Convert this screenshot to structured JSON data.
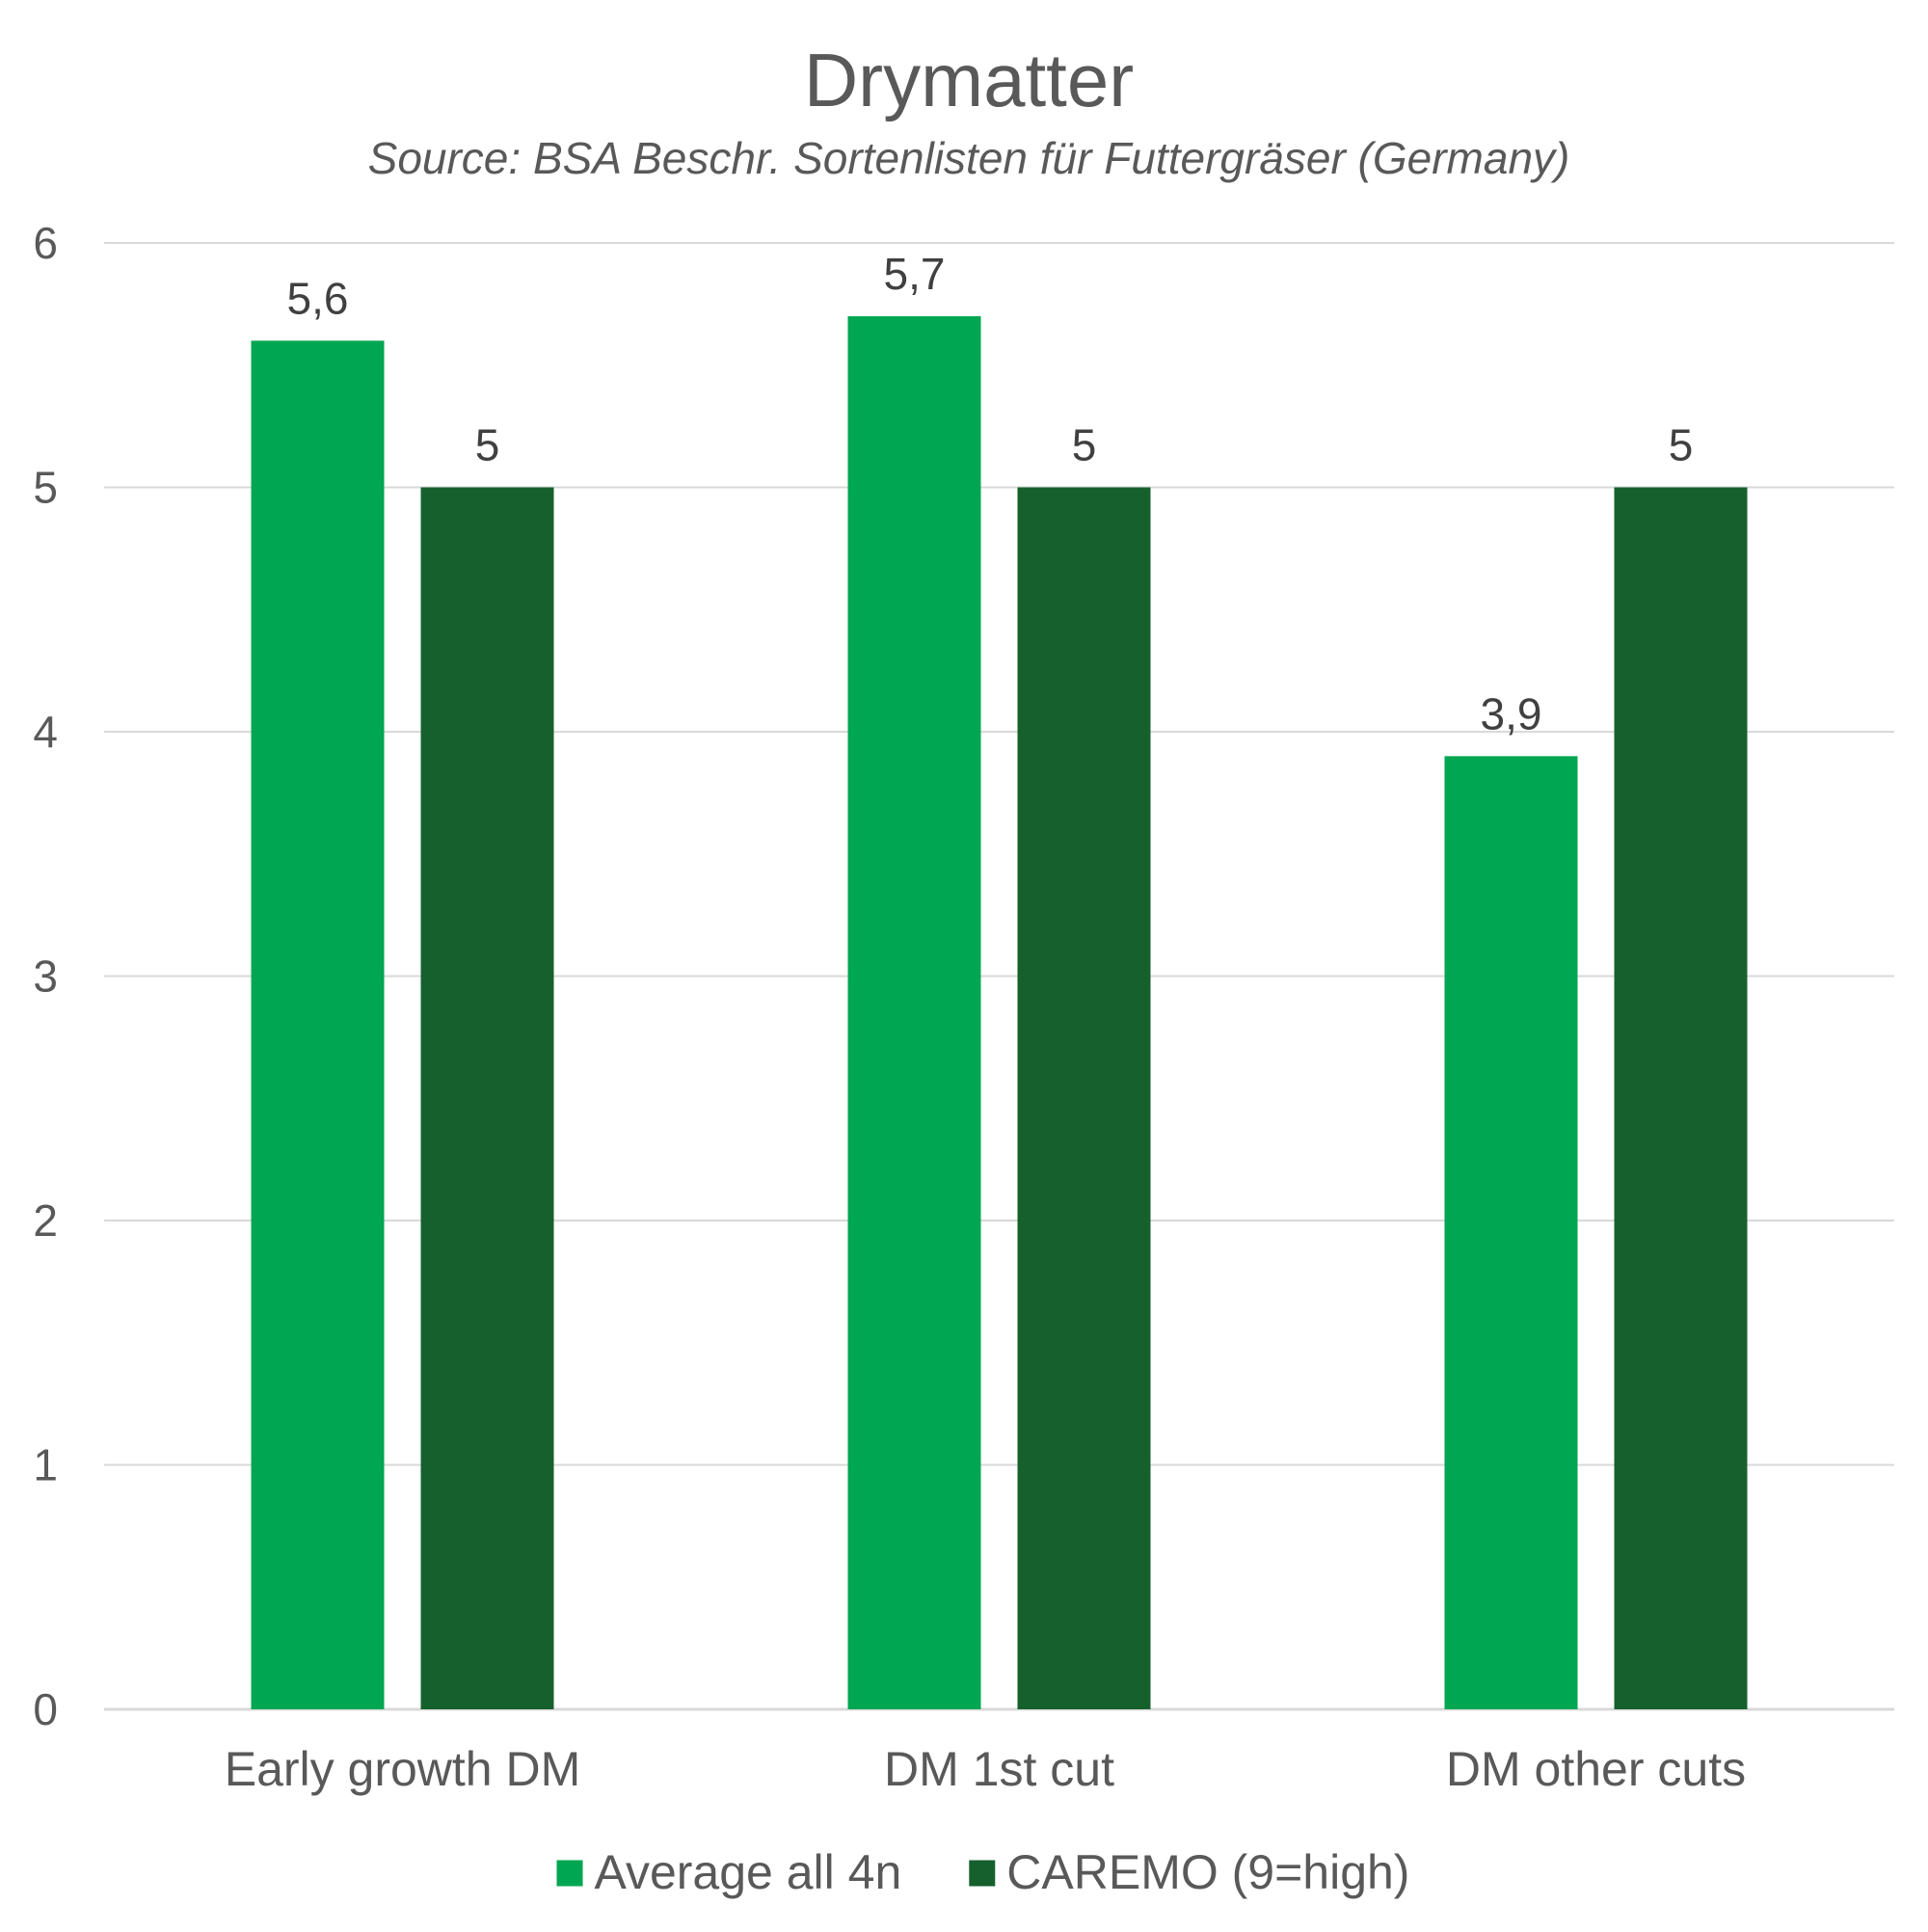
{
  "chart_data": {
    "type": "bar",
    "title": "Drymatter",
    "subtitle": "Source: BSA Beschr. Sortenlisten für Futtergräser (Germany)",
    "categories": [
      "Early growth DM",
      "DM 1st cut",
      "DM other cuts"
    ],
    "series": [
      {
        "name": "Average all 4n",
        "values": [
          5.6,
          5.7,
          3.9
        ],
        "labels": [
          "5,6",
          "5,7",
          "3,9"
        ],
        "color": "#00A651"
      },
      {
        "name": "CAREMO (9=high)",
        "values": [
          5,
          5,
          5
        ],
        "labels": [
          "5",
          "5",
          "5"
        ],
        "color": "#16602E"
      }
    ],
    "ylim": [
      0,
      6
    ],
    "yticks": [
      "0",
      "1",
      "2",
      "3",
      "4",
      "5",
      "6"
    ],
    "xlabel": "",
    "ylabel": "",
    "grid": true,
    "legend_position": "bottom",
    "colors": {
      "title": "#595959",
      "text": "#595959",
      "data_label": "#404040",
      "grid": "#D9D9D9"
    }
  }
}
